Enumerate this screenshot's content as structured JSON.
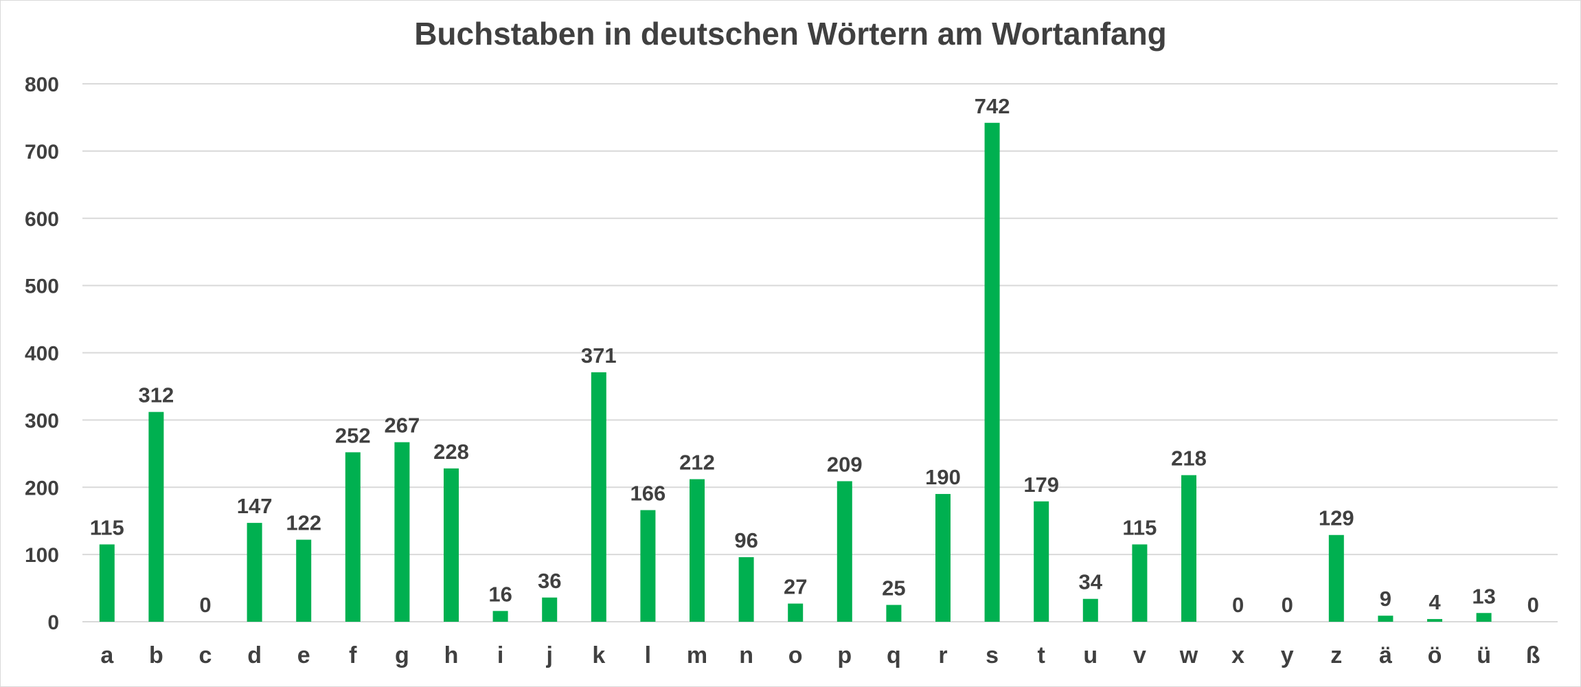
{
  "chart_data": {
    "type": "bar",
    "title": "Buchstaben in deutschen Wörtern am Wortanfang",
    "xlabel": "",
    "ylabel": "",
    "ylim": [
      0,
      800
    ],
    "yticks": [
      0,
      100,
      200,
      300,
      400,
      500,
      600,
      700,
      800
    ],
    "grid": true,
    "legend": "none",
    "categories": [
      "a",
      "b",
      "c",
      "d",
      "e",
      "f",
      "g",
      "h",
      "i",
      "j",
      "k",
      "l",
      "m",
      "n",
      "o",
      "p",
      "q",
      "r",
      "s",
      "t",
      "u",
      "v",
      "w",
      "x",
      "y",
      "z",
      "ä",
      "ö",
      "ü",
      "ß"
    ],
    "series": [
      {
        "name": "Wortanfang",
        "color": "#00b050",
        "values": [
          115,
          312,
          0,
          147,
          122,
          252,
          267,
          228,
          16,
          36,
          371,
          166,
          212,
          96,
          27,
          209,
          25,
          190,
          742,
          179,
          34,
          115,
          218,
          0,
          0,
          129,
          9,
          4,
          13,
          0
        ]
      }
    ]
  }
}
